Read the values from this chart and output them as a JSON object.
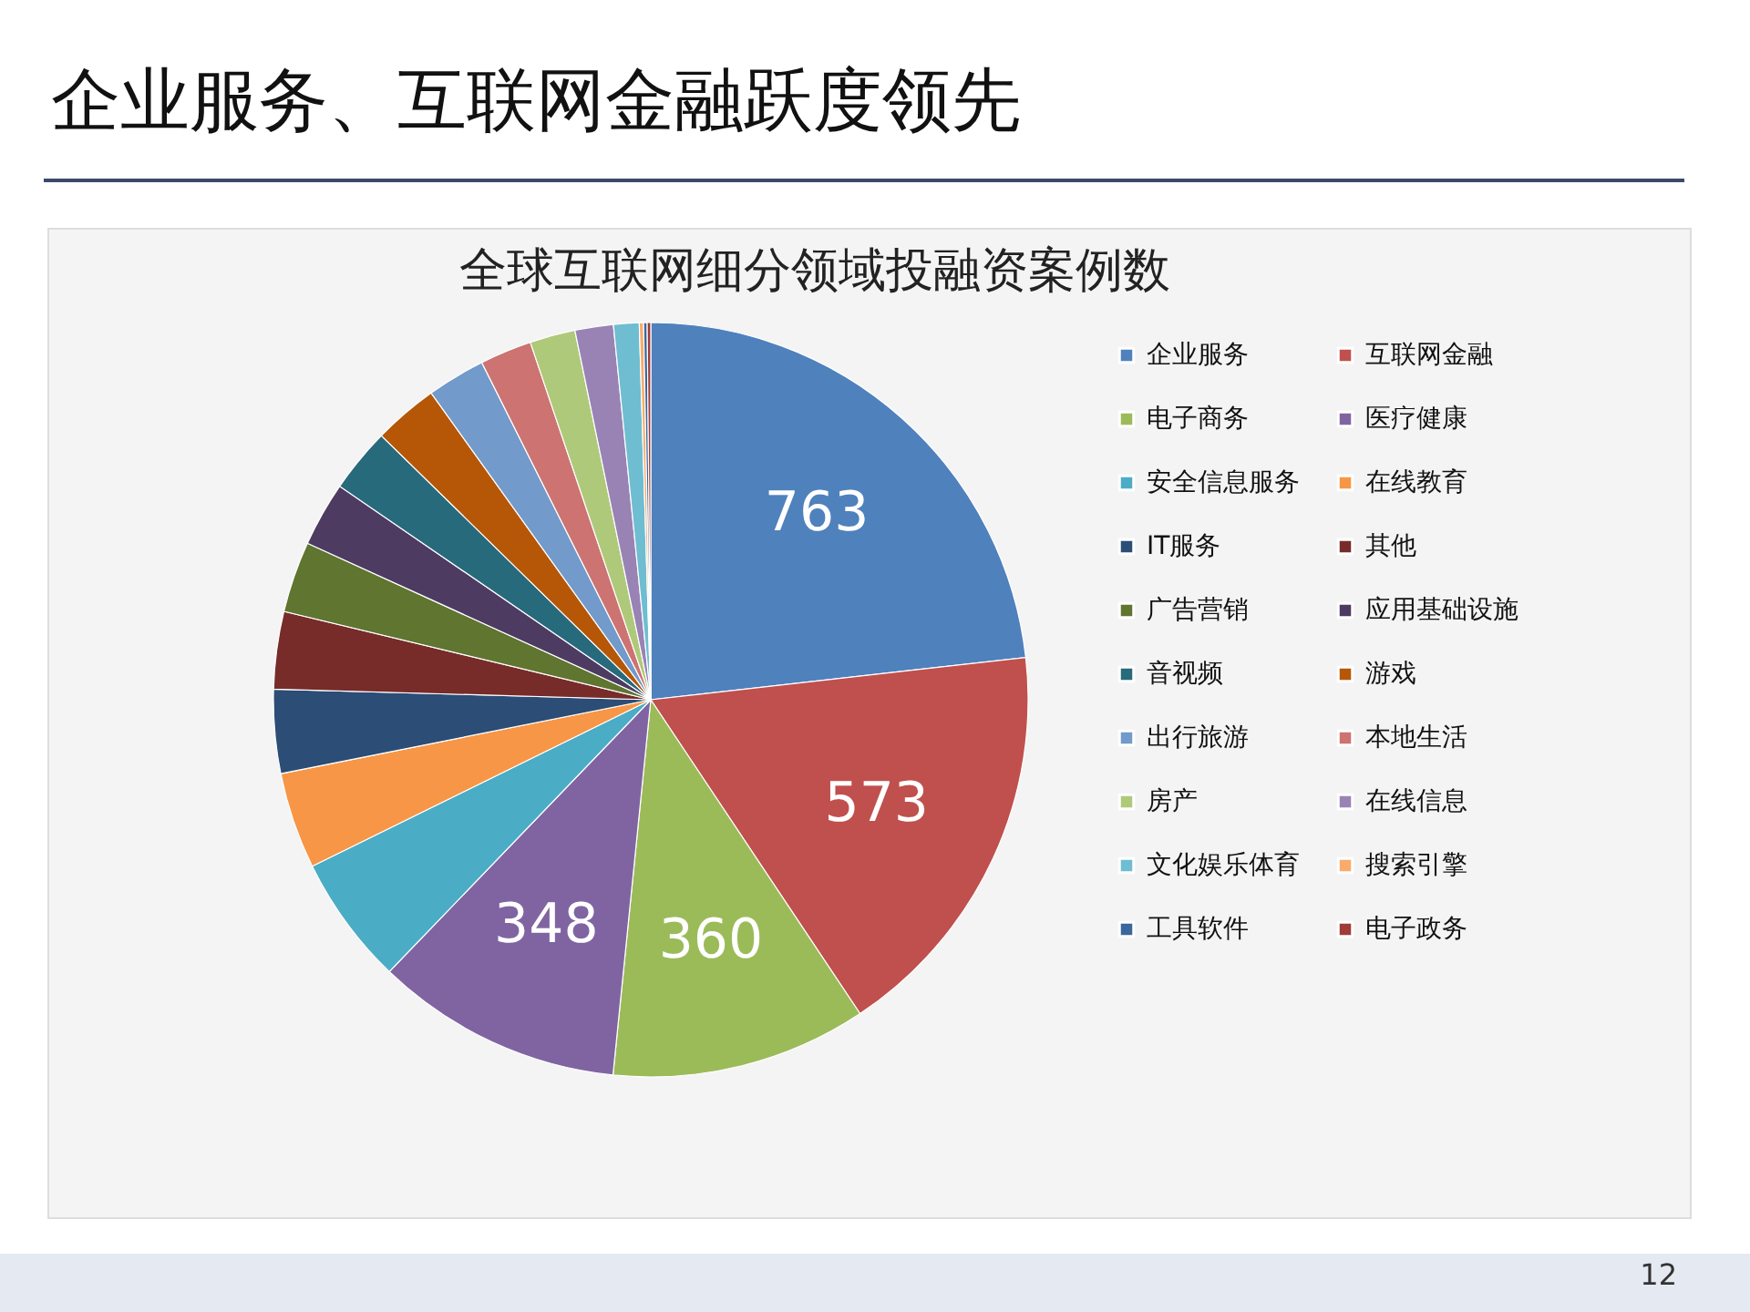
{
  "chart_data": {
    "type": "pie",
    "title": "企业服务、互联网金融跃度领先",
    "subtitle": "全球互联网细分领域投融资案例数",
    "categories": [
      "企业服务",
      "互联网金融",
      "电子商务",
      "医疗健康",
      "安全信息服务",
      "在线教育",
      "IT服务",
      "其他",
      "广告营销",
      "应用基础设施",
      "音视频",
      "游戏",
      "出行旅游",
      "本地生活",
      "房产",
      "在线信息",
      "文化娱乐体育",
      "搜索引擎",
      "工具软件",
      "电子政务"
    ],
    "values": [
      763,
      573,
      360,
      348,
      182,
      136,
      118,
      109,
      100,
      91,
      91,
      91,
      82,
      73,
      64,
      54,
      36,
      6,
      5,
      5
    ],
    "value_labels": [
      "763",
      "573",
      "360",
      "348",
      null,
      null,
      null,
      null,
      null,
      null,
      null,
      null,
      null,
      null,
      null,
      null,
      null,
      null,
      null,
      null
    ],
    "colors": [
      "#4f81bd",
      "#c0504d",
      "#9bbb59",
      "#8064a2",
      "#4bacc6",
      "#f79646",
      "#2c4d75",
      "#772c2a",
      "#5f7530",
      "#4d3b62",
      "#276a7c",
      "#b65708",
      "#729aca",
      "#cd7371",
      "#afc97a",
      "#9983b5",
      "#6fbdd1",
      "#f9ab6b",
      "#3a679c",
      "#9f3b38"
    ],
    "legend": "right",
    "annotations": [
      "12"
    ]
  }
}
